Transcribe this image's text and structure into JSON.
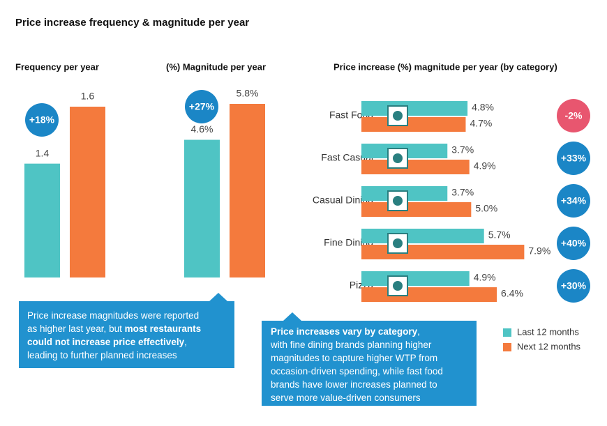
{
  "title": "Price increase frequency & magnitude per year",
  "chart_data": [
    {
      "type": "bar",
      "title": "Frequency per year",
      "values": [
        1.4,
        1.6
      ],
      "colors": [
        "#4fc4c4",
        "#f47a3d"
      ],
      "ylim": [
        1,
        1.6
      ],
      "annotations": [
        {
          "text": "+18%",
          "color": "#1b86c6"
        }
      ]
    },
    {
      "type": "bar",
      "title": "(%) Magnitude per year",
      "values": [
        4.6,
        5.8
      ],
      "value_labels": [
        "4.6%",
        "5.8%"
      ],
      "colors": [
        "#4fc4c4",
        "#f47a3d"
      ],
      "ylim": [
        0,
        5.8
      ],
      "annotations": [
        {
          "text": "+27%",
          "color": "#1b86c6"
        }
      ]
    },
    {
      "type": "hbar",
      "title": "Price increase (%) magnitude per year (by category)",
      "categories": [
        "Fast Food",
        "Fast Casual",
        "Casual Dining",
        "Fine Dining",
        "Pizza"
      ],
      "xlim": [
        -1,
        8
      ],
      "series": [
        {
          "name": "Last 12 months",
          "color": "#4fc4c4",
          "values": [
            4.8,
            3.7,
            3.7,
            5.7,
            4.9
          ],
          "value_labels": [
            "4.8%",
            "3.7%",
            "3.7%",
            "5.7%",
            "4.9%"
          ]
        },
        {
          "name": "Next 12 months",
          "color": "#f47a3d",
          "values": [
            4.7,
            4.9,
            5.0,
            7.9,
            6.4
          ],
          "value_labels": [
            "4.7%",
            "4.9%",
            "5.0%",
            "7.9%",
            "6.4%"
          ]
        }
      ],
      "annotations": [
        {
          "text": "-2%",
          "color": "#e8566f"
        },
        {
          "text": "+33%",
          "color": "#1b86c6"
        },
        {
          "text": "+34%",
          "color": "#1b86c6"
        },
        {
          "text": "+40%",
          "color": "#1b86c6"
        },
        {
          "text": "+30%",
          "color": "#1b86c6"
        }
      ]
    }
  ],
  "callouts": [
    {
      "lines": [
        [
          {
            "text": "Price increase magnitudes were reported",
            "bold": false
          }
        ],
        [
          {
            "text": "as higher last year, but ",
            "bold": false
          },
          {
            "text": "most restaurants",
            "bold": true
          }
        ],
        [
          {
            "text": "could not increase price effectively",
            "bold": true
          },
          {
            "text": ",",
            "bold": false
          }
        ],
        [
          {
            "text": "leading to further planned increases",
            "bold": false
          }
        ]
      ]
    },
    {
      "lines": [
        [
          {
            "text": "Price increases vary by category",
            "bold": true
          },
          {
            "text": ",",
            "bold": false
          }
        ],
        [
          {
            "text": "with fine dining brands planning higher",
            "bold": false
          }
        ],
        [
          {
            "text": "magnitudes to capture higher WTP from",
            "bold": false
          }
        ],
        [
          {
            "text": "occasion-driven spending, while fast food",
            "bold": false
          }
        ],
        [
          {
            "text": "brands have lower increases planned to",
            "bold": false
          }
        ],
        [
          {
            "text": "serve more value-driven consumers",
            "bold": false
          }
        ]
      ]
    }
  ]
}
